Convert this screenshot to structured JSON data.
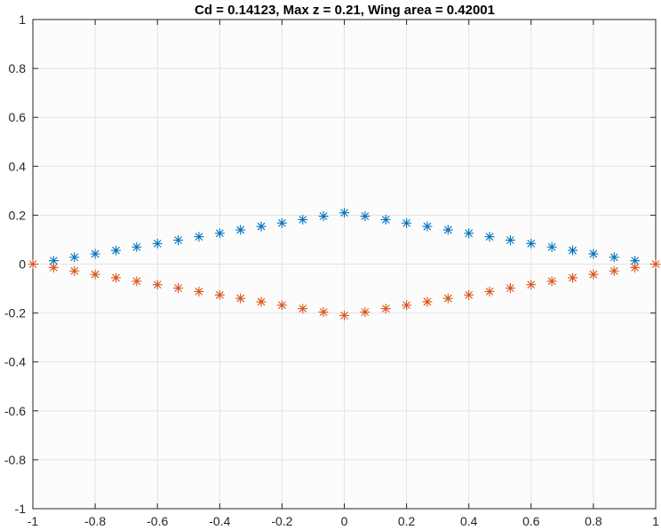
{
  "chart_data": {
    "type": "scatter",
    "title": "Cd = 0.14123, Max z = 0.21, Wing area = 0.42001",
    "xlabel": "",
    "ylabel": "",
    "xlim": [
      -1,
      1
    ],
    "ylim": [
      -1,
      1
    ],
    "xticks": [
      -1,
      -0.8,
      -0.6,
      -0.4,
      -0.2,
      0,
      0.2,
      0.4,
      0.6,
      0.8,
      1
    ],
    "xtick_labels": [
      "-1",
      "-0.8",
      "-0.6",
      "-0.4",
      "-0.2",
      "0",
      "0.2",
      "0.4",
      "0.6",
      "0.8",
      "1"
    ],
    "yticks": [
      -1,
      -0.8,
      -0.6,
      -0.4,
      -0.2,
      0,
      0.2,
      0.4,
      0.6,
      0.8,
      1
    ],
    "ytick_labels": [
      "-1",
      "-0.8",
      "-0.6",
      "-0.4",
      "-0.2",
      "0",
      "0.2",
      "0.4",
      "0.6",
      "0.8",
      "1"
    ],
    "grid": true,
    "marker": "asterisk",
    "series": [
      {
        "color": "#0072BD",
        "x": [
          -0.9333,
          -0.8667,
          -0.8,
          -0.7333,
          -0.6667,
          -0.6,
          -0.5333,
          -0.4667,
          -0.4,
          -0.3333,
          -0.2667,
          -0.2,
          -0.1333,
          -0.0667,
          0,
          0.0667,
          0.1333,
          0.2,
          0.2667,
          0.3333,
          0.4,
          0.4667,
          0.5333,
          0.6,
          0.6667,
          0.7333,
          0.8,
          0.8667,
          0.9333
        ],
        "y": [
          0.014,
          0.028,
          0.042,
          0.056,
          0.07,
          0.084,
          0.098,
          0.112,
          0.126,
          0.14,
          0.154,
          0.168,
          0.182,
          0.196,
          0.21,
          0.196,
          0.182,
          0.168,
          0.154,
          0.14,
          0.126,
          0.112,
          0.098,
          0.084,
          0.07,
          0.056,
          0.042,
          0.028,
          0.014
        ]
      },
      {
        "color": "#D95319",
        "x": [
          -1,
          -0.9333,
          -0.8667,
          -0.8,
          -0.7333,
          -0.6667,
          -0.6,
          -0.5333,
          -0.4667,
          -0.4,
          -0.3333,
          -0.2667,
          -0.2,
          -0.1333,
          -0.0667,
          0,
          0.0667,
          0.1333,
          0.2,
          0.2667,
          0.3333,
          0.4,
          0.4667,
          0.5333,
          0.6,
          0.6667,
          0.7333,
          0.8,
          0.8667,
          0.9333,
          1
        ],
        "y": [
          0,
          -0.014,
          -0.028,
          -0.042,
          -0.056,
          -0.07,
          -0.084,
          -0.098,
          -0.112,
          -0.126,
          -0.14,
          -0.154,
          -0.168,
          -0.182,
          -0.196,
          -0.21,
          -0.196,
          -0.182,
          -0.168,
          -0.154,
          -0.14,
          -0.126,
          -0.112,
          -0.098,
          -0.084,
          -0.07,
          -0.056,
          -0.042,
          -0.028,
          -0.014,
          0
        ]
      }
    ]
  }
}
